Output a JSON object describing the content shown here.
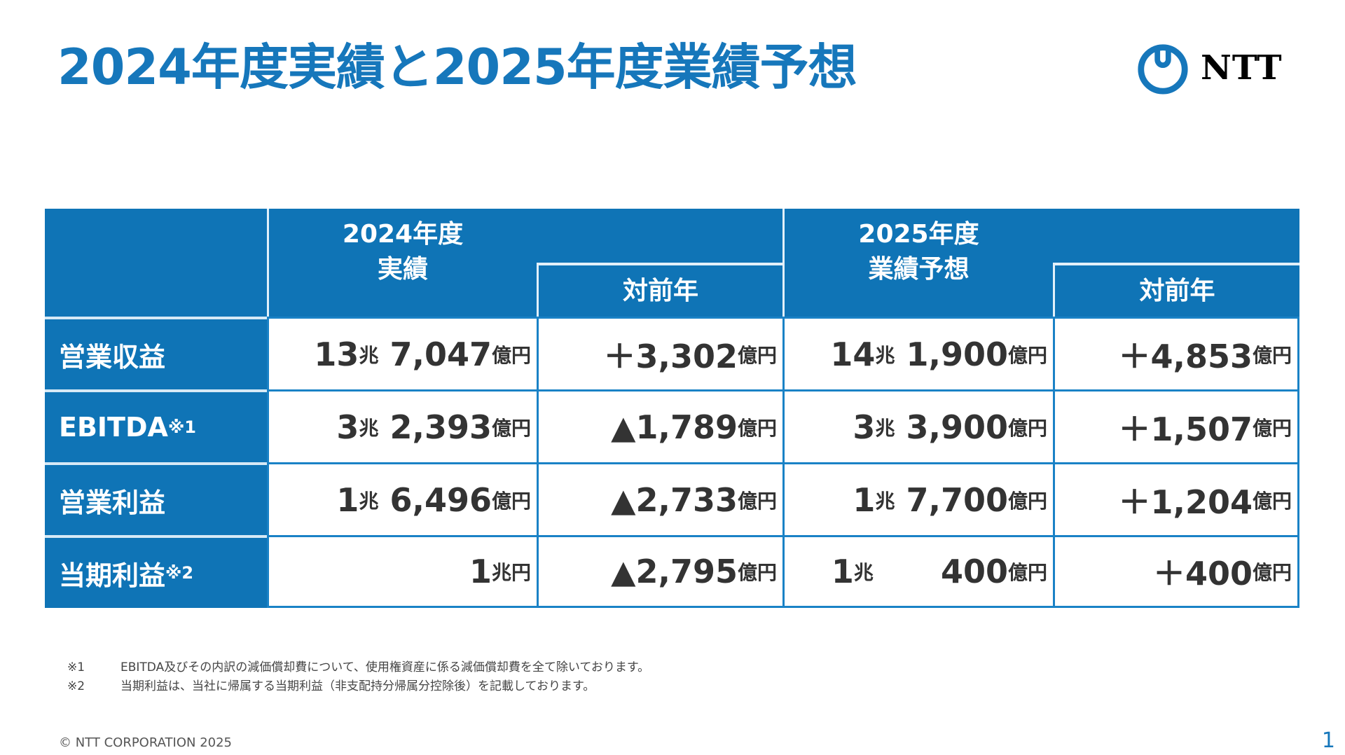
{
  "title": "2024年度実績と2025年度業績予想",
  "logo": {
    "text": "NTT",
    "color": "#1677bb"
  },
  "table": {
    "header": {
      "fy2024_line1": "2024年度",
      "fy2024_line2": "実績",
      "yoy_2024": "対前年",
      "fy2025_line1": "2025年度",
      "fy2025_line2": "業績予想",
      "yoy_2025": "対前年"
    },
    "rows": [
      {
        "label": "営業収益",
        "note": "",
        "cells": [
          [
            [
              "13",
              0
            ],
            [
              "兆",
              1
            ],
            [
              " 7,047",
              0
            ],
            [
              "億円",
              1
            ]
          ],
          [
            [
              "＋3,302",
              0
            ],
            [
              "億円",
              1
            ]
          ],
          [
            [
              "14",
              0
            ],
            [
              "兆",
              1
            ],
            [
              " 1,900",
              0
            ],
            [
              "億円",
              1
            ]
          ],
          [
            [
              "＋4,853",
              0
            ],
            [
              "億円",
              1
            ]
          ]
        ]
      },
      {
        "label": "EBITDA",
        "note": "※1",
        "cells": [
          [
            [
              "3",
              0
            ],
            [
              "兆",
              1
            ],
            [
              " 2,393",
              0
            ],
            [
              "億円",
              1
            ]
          ],
          [
            [
              "▲1,789",
              0
            ],
            [
              "億円",
              1
            ]
          ],
          [
            [
              "3",
              0
            ],
            [
              "兆",
              1
            ],
            [
              " 3,900",
              0
            ],
            [
              "億円",
              1
            ]
          ],
          [
            [
              "＋1,507",
              0
            ],
            [
              "億円",
              1
            ]
          ]
        ]
      },
      {
        "label": "営業利益",
        "note": "",
        "cells": [
          [
            [
              "1",
              0
            ],
            [
              "兆",
              1
            ],
            [
              " 6,496",
              0
            ],
            [
              "億円",
              1
            ]
          ],
          [
            [
              "▲2,733",
              0
            ],
            [
              "億円",
              1
            ]
          ],
          [
            [
              "1",
              0
            ],
            [
              "兆",
              1
            ],
            [
              " 7,700",
              0
            ],
            [
              "億円",
              1
            ]
          ],
          [
            [
              "＋1,204",
              0
            ],
            [
              "億円",
              1
            ]
          ]
        ]
      },
      {
        "label": "当期利益",
        "note": "※2",
        "cells": [
          [
            [
              "1",
              0
            ],
            [
              "兆円",
              1
            ]
          ],
          [
            [
              "▲2,795",
              0
            ],
            [
              "億円",
              1
            ]
          ],
          [
            [
              "1",
              0
            ],
            [
              "兆",
              1
            ],
            [
              "      400",
              0
            ],
            [
              "億円",
              1
            ]
          ],
          [
            [
              "＋400",
              0
            ],
            [
              "億円",
              1
            ]
          ]
        ]
      }
    ]
  },
  "footnotes": [
    {
      "mark": "※1",
      "text": "EBITDA及びその内訳の減価償却費について、使用権資産に係る減価償却費を全て除いております。"
    },
    {
      "mark": "※2",
      "text": "当期利益は、当社に帰属する当期利益（非支配持分帰属分控除後）を記載しております。"
    }
  ],
  "copyright": "© NTT CORPORATION 2025",
  "page_number": "1"
}
